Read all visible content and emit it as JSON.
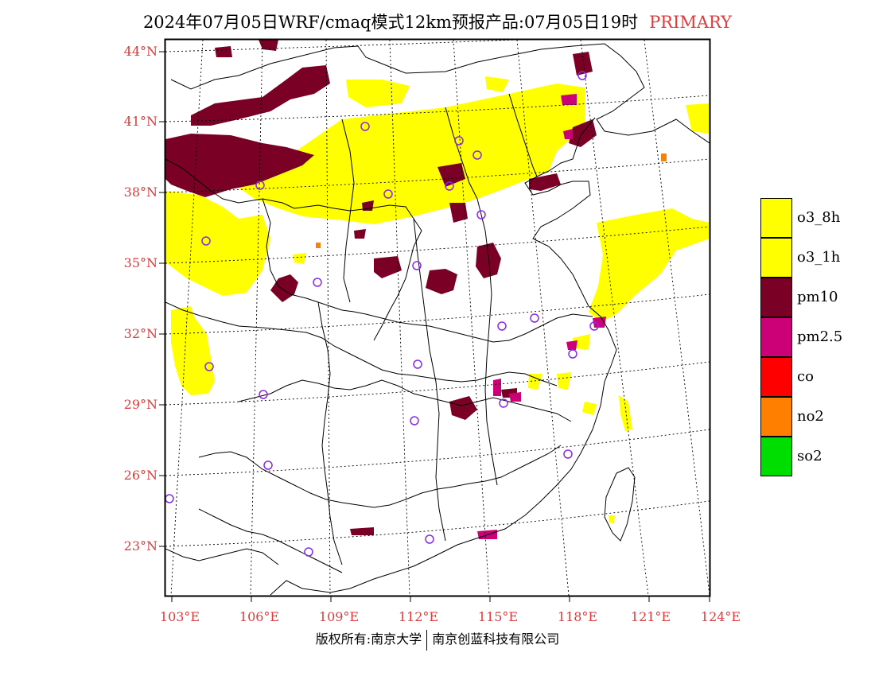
{
  "title": {
    "main": "2024年07月05日WRF/cmaq模式12km预报产品:07月05日19时",
    "tag": "PRIMARY"
  },
  "latitudes": [
    "44°N",
    "41°N",
    "38°N",
    "35°N",
    "32°N",
    "29°N",
    "26°N",
    "23°N"
  ],
  "longitudes": [
    "103°E",
    "106°E",
    "109°E",
    "112°E",
    "115°E",
    "118°E",
    "121°E",
    "124°E"
  ],
  "legend": [
    {
      "label": "o3_8h",
      "color": "#ffff00"
    },
    {
      "label": "o3_1h",
      "color": "#ffff00"
    },
    {
      "label": "pm10",
      "color": "#7a0026"
    },
    {
      "label": "pm2.5",
      "color": "#cc0077"
    },
    {
      "label": "co",
      "color": "#ff0000"
    },
    {
      "label": "no2",
      "color": "#ff7f00"
    },
    {
      "label": "so2",
      "color": "#00dd00"
    }
  ],
  "credit": {
    "left": "版权所有:南京大学",
    "right": "南京创蓝科技有限公司"
  }
}
